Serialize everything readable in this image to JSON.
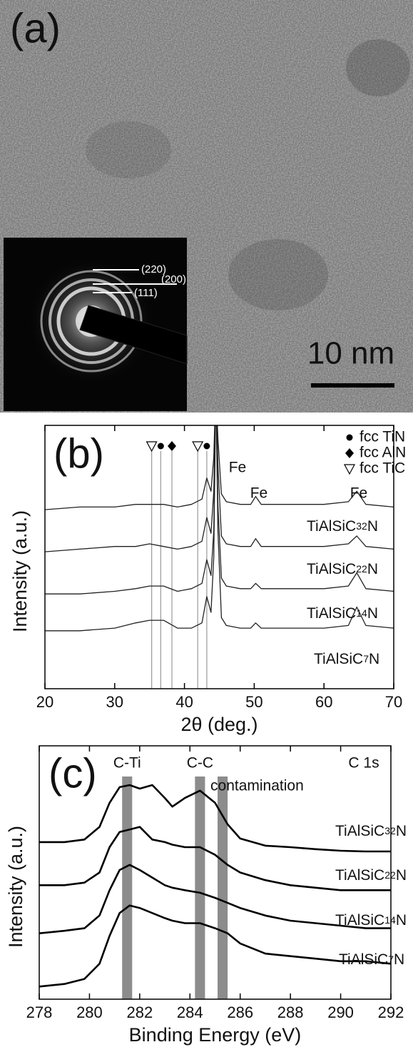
{
  "panel_a": {
    "label": "(a)",
    "scale_bar": "10 nm",
    "diffraction_labels": [
      "(220)",
      "(200)",
      "(111)"
    ]
  },
  "chart_data": [
    {
      "type": "line",
      "panel_label": "(b)",
      "xlabel": "2θ (deg.)",
      "ylabel": "Intensity (a.u.)",
      "xlim": [
        20,
        70
      ],
      "xticks": [
        20,
        30,
        40,
        50,
        60,
        70
      ],
      "ylim": [
        0,
        100
      ],
      "x": [
        20,
        25,
        30,
        33,
        35,
        37,
        39,
        41,
        42.5,
        43.2,
        43.8,
        44.2,
        44.5,
        44.8,
        45.3,
        46,
        48,
        49.5,
        50.2,
        51,
        55,
        60,
        63.5,
        64.7,
        66,
        70
      ],
      "series": [
        {
          "name": "TiAlSiC32N",
          "color": "#222222",
          "values": [
            68,
            69,
            69,
            70,
            70,
            70,
            69,
            70,
            72,
            80,
            75,
            88,
            115,
            95,
            74,
            71,
            70,
            70,
            73,
            70,
            70,
            70,
            71,
            75,
            70,
            69
          ]
        },
        {
          "name": "TiAlSiC22N",
          "color": "#222222",
          "values": [
            52,
            53,
            54,
            54,
            55,
            54,
            53,
            54,
            56,
            65,
            59,
            75,
            115,
            85,
            58,
            55,
            54,
            54,
            57,
            54,
            54,
            54,
            55,
            58,
            54,
            53
          ]
        },
        {
          "name": "TiAlSiC14N",
          "color": "#222222",
          "values": [
            36,
            36,
            37,
            38,
            39,
            39,
            37,
            38,
            40,
            49,
            43,
            60,
            115,
            70,
            42,
            39,
            38,
            38,
            40,
            38,
            38,
            38,
            39,
            44,
            38,
            37
          ]
        },
        {
          "name": "TiAlSiC7N",
          "color": "#222222",
          "values": [
            22,
            22,
            23,
            25,
            26,
            26,
            23,
            23,
            25,
            35,
            29,
            50,
            115,
            60,
            27,
            24,
            23,
            23,
            25,
            23,
            23,
            23,
            24,
            31,
            24,
            23
          ]
        }
      ],
      "phases": [
        {
          "name": "fcc TiN",
          "marker": "circle"
        },
        {
          "name": "fcc AlN",
          "marker": "diamond"
        },
        {
          "name": "fcc TiC",
          "marker": "triangle-down"
        }
      ],
      "reference_lines": [
        {
          "x": 35.3,
          "phase": 2
        },
        {
          "x": 36.6,
          "phase": 0
        },
        {
          "x": 38.2,
          "phase": 1
        },
        {
          "x": 41.9,
          "phase": 2
        },
        {
          "x": 43.2,
          "phase": 0
        }
      ],
      "annotations": [
        "Fe",
        "Fe",
        "Fe"
      ]
    },
    {
      "type": "line",
      "panel_label": "(c)",
      "xlabel": "Binding Energy (eV)",
      "ylabel": "Intensity (a.u.)",
      "xlim": [
        278,
        292
      ],
      "xticks": [
        278,
        280,
        282,
        284,
        286,
        288,
        290,
        292
      ],
      "ylim": [
        0,
        100
      ],
      "x": [
        278,
        279,
        279.8,
        280.4,
        280.8,
        281.2,
        281.6,
        282,
        282.5,
        283,
        283.3,
        283.8,
        284.4,
        285,
        285.5,
        286,
        287,
        288,
        289,
        290,
        291,
        292
      ],
      "series": [
        {
          "name": "TiAlSiC32N",
          "color": "#000000",
          "values": [
            62,
            62,
            63,
            68,
            77.5,
            83.7,
            84.5,
            83.1,
            84.5,
            79.4,
            76,
            79.4,
            82.3,
            77.5,
            69,
            63.4,
            60.6,
            60,
            59.2,
            58.6,
            58.3,
            58.3
          ]
        },
        {
          "name": "TiAlSiC22N",
          "color": "#000000",
          "values": [
            45,
            45,
            46,
            50,
            60,
            66,
            67,
            68,
            63,
            62,
            61,
            60,
            60,
            57,
            53,
            50,
            47,
            45,
            44,
            43,
            43,
            43
          ]
        },
        {
          "name": "TiAlSiC14N",
          "color": "#000000",
          "values": [
            26,
            27,
            28,
            33,
            43,
            51,
            53,
            51,
            48,
            45,
            44,
            43,
            42,
            40,
            38,
            36,
            33,
            31,
            30,
            29,
            28,
            28
          ]
        },
        {
          "name": "TiAlSiC7N",
          "color": "#000000",
          "values": [
            5,
            6,
            8,
            14,
            25,
            34,
            37,
            36,
            34,
            32,
            31,
            30,
            30,
            28,
            26,
            22,
            18,
            17,
            16,
            15,
            15,
            14
          ]
        }
      ],
      "bands": [
        {
          "label": "C-Ti",
          "from": 281.3,
          "to": 281.7,
          "color": "#8c8c8c"
        },
        {
          "label": "C-C",
          "from": 284.2,
          "to": 284.6,
          "color": "#8c8c8c"
        },
        {
          "label": "contamination",
          "from": 285.1,
          "to": 285.5,
          "color": "#8c8c8c"
        }
      ],
      "annotations": [
        "C 1s"
      ]
    }
  ]
}
